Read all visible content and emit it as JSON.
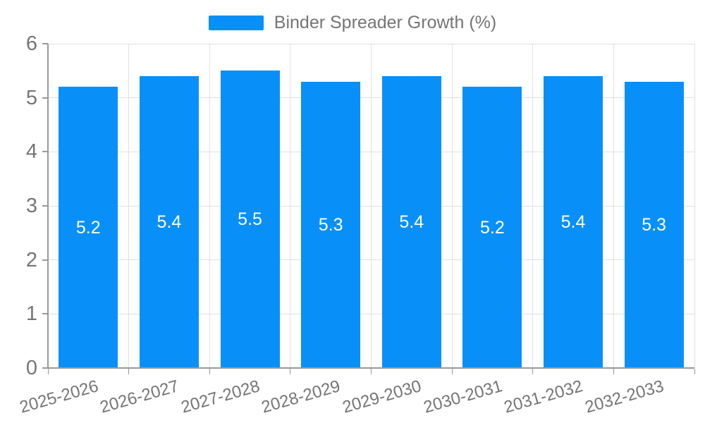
{
  "legend": {
    "label": "Binder Spreader Growth (%)"
  },
  "chart_data": {
    "type": "bar",
    "title": "",
    "xlabel": "",
    "ylabel": "",
    "categories": [
      "2025-2026",
      "2026-2027",
      "2027-2028",
      "2028-2029",
      "2029-2030",
      "2030-2031",
      "2031-2032",
      "2032-2033"
    ],
    "series": [
      {
        "name": "Binder Spreader Growth (%)",
        "values": [
          5.2,
          5.4,
          5.5,
          5.3,
          5.4,
          5.2,
          5.4,
          5.3
        ]
      }
    ],
    "value_labels": [
      "5.2",
      "5.4",
      "5.5",
      "5.3",
      "5.4",
      "5.2",
      "5.4",
      "5.3"
    ],
    "ylim": [
      0,
      6
    ],
    "yticks": [
      0,
      1,
      2,
      3,
      4,
      5,
      6
    ],
    "grid": true,
    "legend_position": "top",
    "colors": {
      "bar": "#0990F8",
      "value_label": "#FFFFFF",
      "axis": "#999999",
      "grid": "#E0E0E0",
      "text": "#757575"
    }
  }
}
